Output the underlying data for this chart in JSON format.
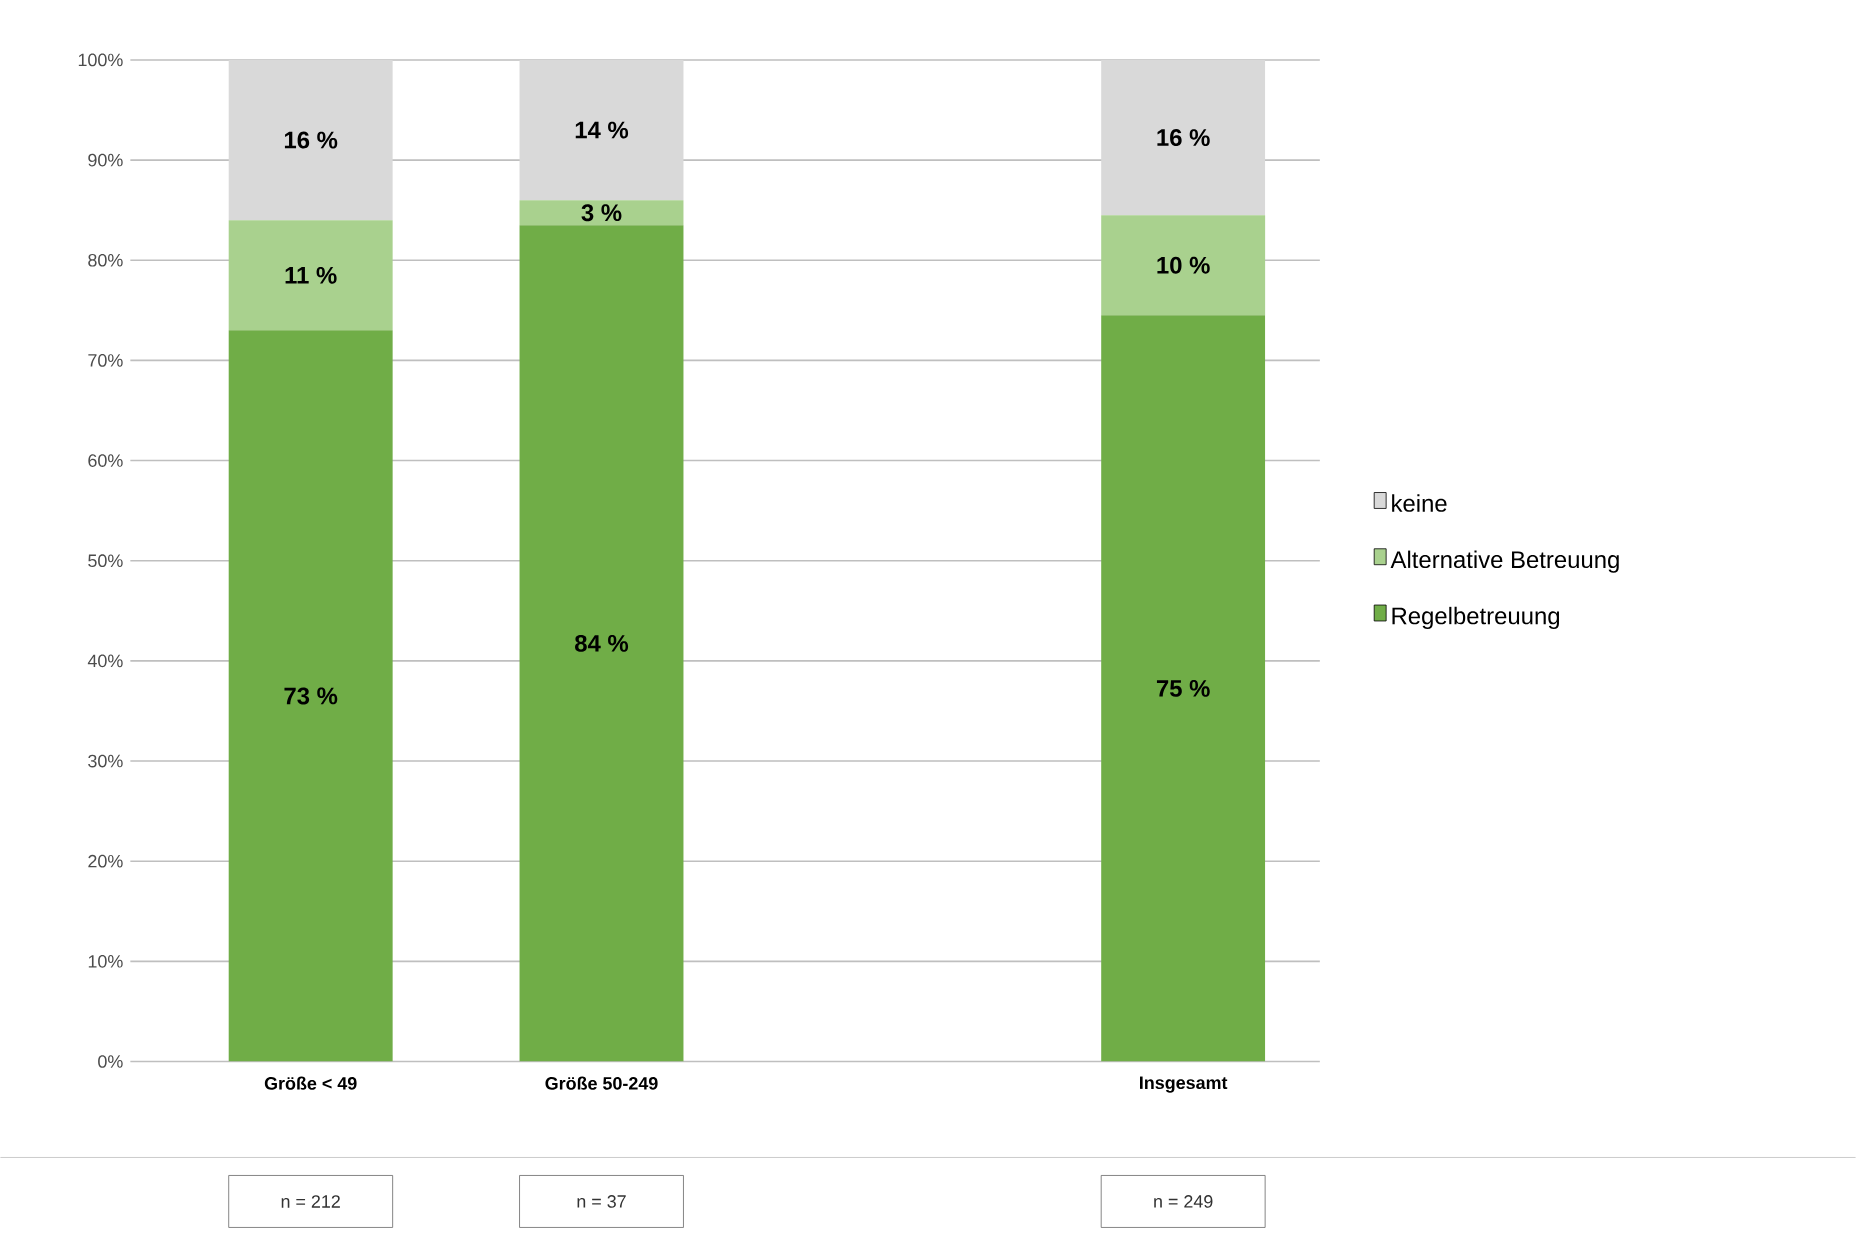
{
  "chart_data": {
    "type": "bar",
    "stacked": true,
    "categories": [
      "Größe < 49",
      "Größe 50-249",
      null,
      "Insgesamt"
    ],
    "series": [
      {
        "name": "Regelbetreuung",
        "color": "#70ad47",
        "values": [
          73,
          83.5,
          null,
          74.5
        ],
        "value_labels": [
          "73 %",
          "84 %",
          null,
          "75 %"
        ]
      },
      {
        "name": "Alternative Betreuung",
        "color": "#a9d18e",
        "values": [
          11,
          2.5,
          null,
          10
        ],
        "value_labels": [
          "11 %",
          "3 %",
          null,
          "10 %"
        ]
      },
      {
        "name": "keine",
        "color": "#d9d9d9",
        "values": [
          16,
          14,
          null,
          15.5
        ],
        "value_labels": [
          "16 %",
          "14 %",
          null,
          "16 %"
        ]
      }
    ],
    "ylim": [
      0,
      100
    ],
    "yticks": [
      {
        "value": 0,
        "label": "0%"
      },
      {
        "value": 10,
        "label": "10%"
      },
      {
        "value": 20,
        "label": "20%"
      },
      {
        "value": 30,
        "label": "30%"
      },
      {
        "value": 40,
        "label": "40%"
      },
      {
        "value": 50,
        "label": "50%"
      },
      {
        "value": 60,
        "label": "60%"
      },
      {
        "value": 70,
        "label": "70%"
      },
      {
        "value": 80,
        "label": "80%"
      },
      {
        "value": 90,
        "label": "90%"
      },
      {
        "value": 100,
        "label": "100%"
      }
    ],
    "grid": "y",
    "legend": "right",
    "annotations": [
      "n = 212",
      "n = 37",
      "n = 249"
    ]
  }
}
